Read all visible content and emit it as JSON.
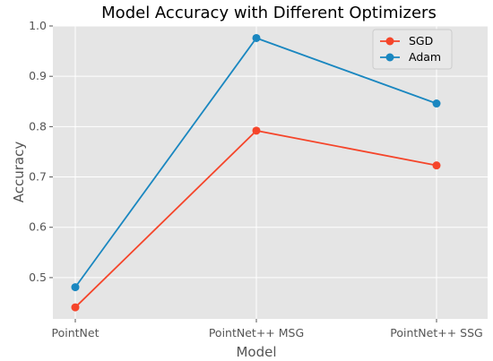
{
  "chart_data": {
    "type": "line",
    "title": "Model Accuracy with Different Optimizers",
    "xlabel": "Model",
    "ylabel": "Accuracy",
    "categories": [
      "PointNet",
      "PointNet++ MSG",
      "PointNet++ SSG"
    ],
    "series": [
      {
        "name": "SGD",
        "values": [
          0.441,
          0.792,
          0.723
        ],
        "color": "#f5452a"
      },
      {
        "name": "Adam",
        "values": [
          0.481,
          0.976,
          0.846
        ],
        "color": "#1a87c0"
      }
    ],
    "yticks": [
      "0.5",
      "0.6",
      "0.7",
      "0.8",
      "0.9",
      "1.0"
    ],
    "ylim": [
      0.418,
      1.0
    ],
    "grid": true,
    "legend_position": "top-right"
  }
}
